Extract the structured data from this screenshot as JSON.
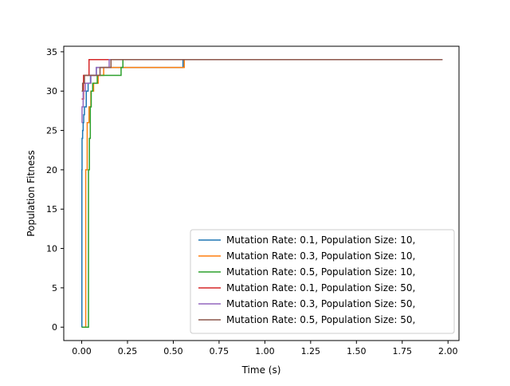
{
  "chart_data": {
    "type": "line",
    "title": "",
    "xlabel": "Time (s)",
    "ylabel": "Population Fitness",
    "xlim": [
      -0.098,
      2.06
    ],
    "ylim": [
      -1.7,
      35.7
    ],
    "x_ticks": [
      0.0,
      0.25,
      0.5,
      0.75,
      1.0,
      1.25,
      1.5,
      1.75,
      2.0
    ],
    "x_tick_labels": [
      "0.00",
      "0.25",
      "0.50",
      "0.75",
      "1.00",
      "1.25",
      "1.50",
      "1.75",
      "2.00"
    ],
    "y_ticks": [
      0,
      5,
      10,
      15,
      20,
      25,
      30,
      35
    ],
    "y_tick_labels": [
      "0",
      "5",
      "10",
      "15",
      "20",
      "25",
      "30",
      "35"
    ],
    "grid": false,
    "legend_position": "lower-right",
    "line_style": "steps-post",
    "series": [
      {
        "name": "Mutation Rate: 0.1, Population Size: 10,",
        "color": "#1f77b4",
        "x": [
          0.0,
          0.001,
          0.002,
          0.005,
          0.008,
          0.011,
          0.015,
          0.025,
          0.035,
          0.048,
          0.06,
          0.08,
          0.1,
          0.2,
          0.55,
          0.553,
          1.91
        ],
        "y": [
          0,
          20,
          24,
          25,
          26,
          27,
          28,
          30,
          31,
          32,
          32,
          33,
          33,
          33,
          33,
          34,
          34
        ]
      },
      {
        "name": "Mutation Rate: 0.3, Population Size: 10,",
        "color": "#ff7f0e",
        "x": [
          0.0,
          0.02,
          0.022,
          0.03,
          0.04,
          0.05,
          0.065,
          0.09,
          0.12,
          0.2,
          0.55,
          0.56,
          1.92
        ],
        "y": [
          0,
          0,
          20,
          26,
          28,
          30,
          31,
          32,
          33,
          33,
          33,
          34,
          34
        ]
      },
      {
        "name": "Mutation Rate: 0.5, Population Size: 10,",
        "color": "#2ca02c",
        "x": [
          0.0,
          0.035,
          0.037,
          0.042,
          0.047,
          0.052,
          0.06,
          0.085,
          0.2,
          0.215,
          0.225,
          1.95
        ],
        "y": [
          0,
          0,
          20,
          24,
          28,
          30,
          31,
          32,
          32,
          33,
          34,
          34
        ]
      },
      {
        "name": "Mutation Rate: 0.1, Population Size: 50,",
        "color": "#d62728",
        "x": [
          0.0,
          0.01,
          0.03,
          0.04,
          1.96
        ],
        "y": [
          29,
          32,
          32,
          34,
          34
        ]
      },
      {
        "name": "Mutation Rate: 0.3, Population Size: 50,",
        "color": "#9467bd",
        "x": [
          0.0,
          0.002,
          0.008,
          0.02,
          0.05,
          0.08,
          0.14,
          0.15,
          1.97
        ],
        "y": [
          26,
          28,
          30,
          31,
          32,
          33,
          33,
          34,
          34
        ]
      },
      {
        "name": "Mutation Rate: 0.5, Population Size: 50,",
        "color": "#8c564b",
        "x": [
          0.0,
          0.005,
          0.015,
          0.1,
          0.16,
          1.97
        ],
        "y": [
          30,
          31,
          32,
          33,
          34,
          34
        ]
      }
    ]
  }
}
